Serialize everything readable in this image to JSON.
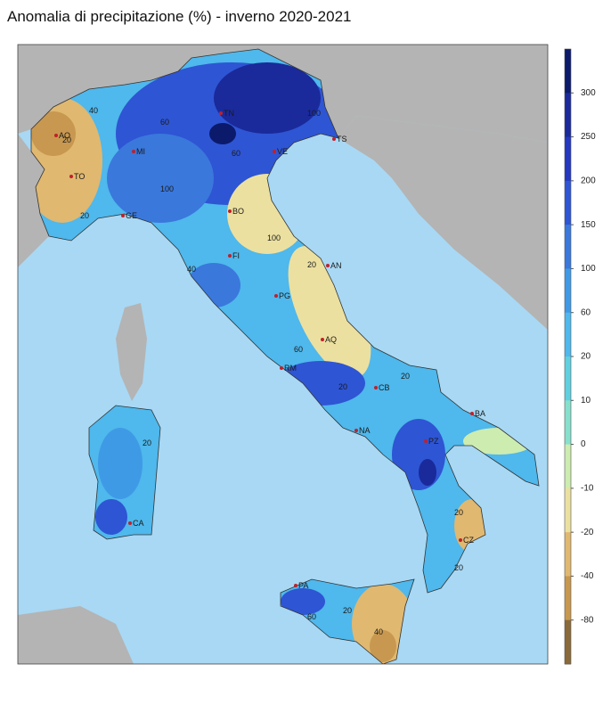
{
  "title": "Anomalia di precipitazione (%) - inverno 2020-2021",
  "cities": [
    "AO",
    "TO",
    "MI",
    "TN",
    "VE",
    "TS",
    "GE",
    "BO",
    "FI",
    "AN",
    "PG",
    "AQ",
    "RM",
    "CB",
    "BA",
    "NA",
    "PZ",
    "CA",
    "CZ",
    "PA"
  ],
  "contour_labels": [
    40,
    20,
    60,
    100,
    100,
    60,
    20,
    20,
    20,
    60,
    20,
    100,
    20,
    20,
    40,
    20,
    60,
    20,
    40
  ],
  "colorbar": {
    "ticks": [
      300,
      250,
      200,
      150,
      100,
      60,
      20,
      10,
      0,
      -10,
      -20,
      -40,
      -80
    ],
    "colors": [
      "#0b1a6b",
      "#1a2a9a",
      "#2438c0",
      "#2e55d4",
      "#3a78dc",
      "#3f9ae6",
      "#4fb8ec",
      "#5fd0e0",
      "#86e0cc",
      "#cdecb0",
      "#ece0a0",
      "#e0b870",
      "#c89850",
      "#8a6a3a"
    ]
  }
}
